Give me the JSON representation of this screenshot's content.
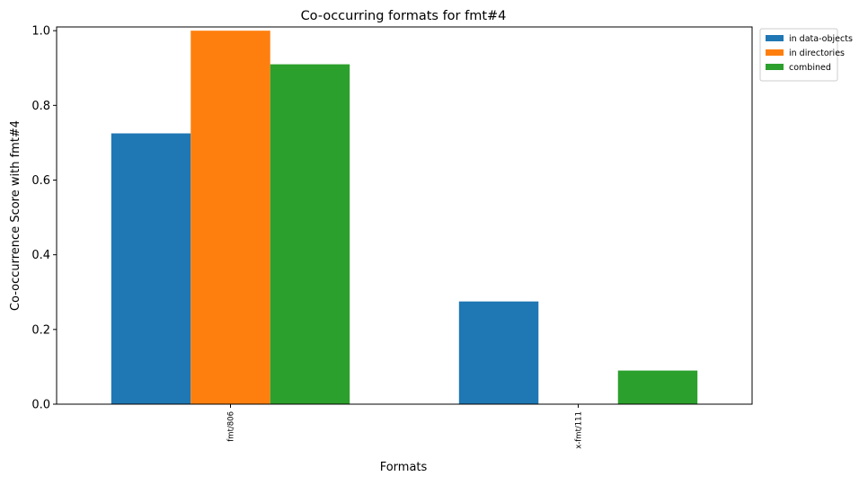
{
  "chart_data": {
    "type": "bar",
    "title": "Co-occurring formats for fmt#4",
    "xlabel": "Formats",
    "ylabel": "Co-occurrence Score with fmt#4",
    "categories": [
      "fmt/806",
      "x-fmt/111"
    ],
    "series": [
      {
        "name": "in data-objects",
        "color": "#1f77b4",
        "values": [
          0.725,
          0.275
        ]
      },
      {
        "name": "in directories",
        "color": "#ff7f0e",
        "values": [
          1.0,
          0.0
        ]
      },
      {
        "name": "combined",
        "color": "#2ca02c",
        "values": [
          0.91,
          0.09
        ]
      }
    ],
    "ylim": [
      0,
      1.01
    ],
    "yticks": [
      "0.0",
      "0.2",
      "0.4",
      "0.6",
      "0.8",
      "1.0"
    ],
    "grid": false,
    "legend_position": "outside-top-right"
  }
}
